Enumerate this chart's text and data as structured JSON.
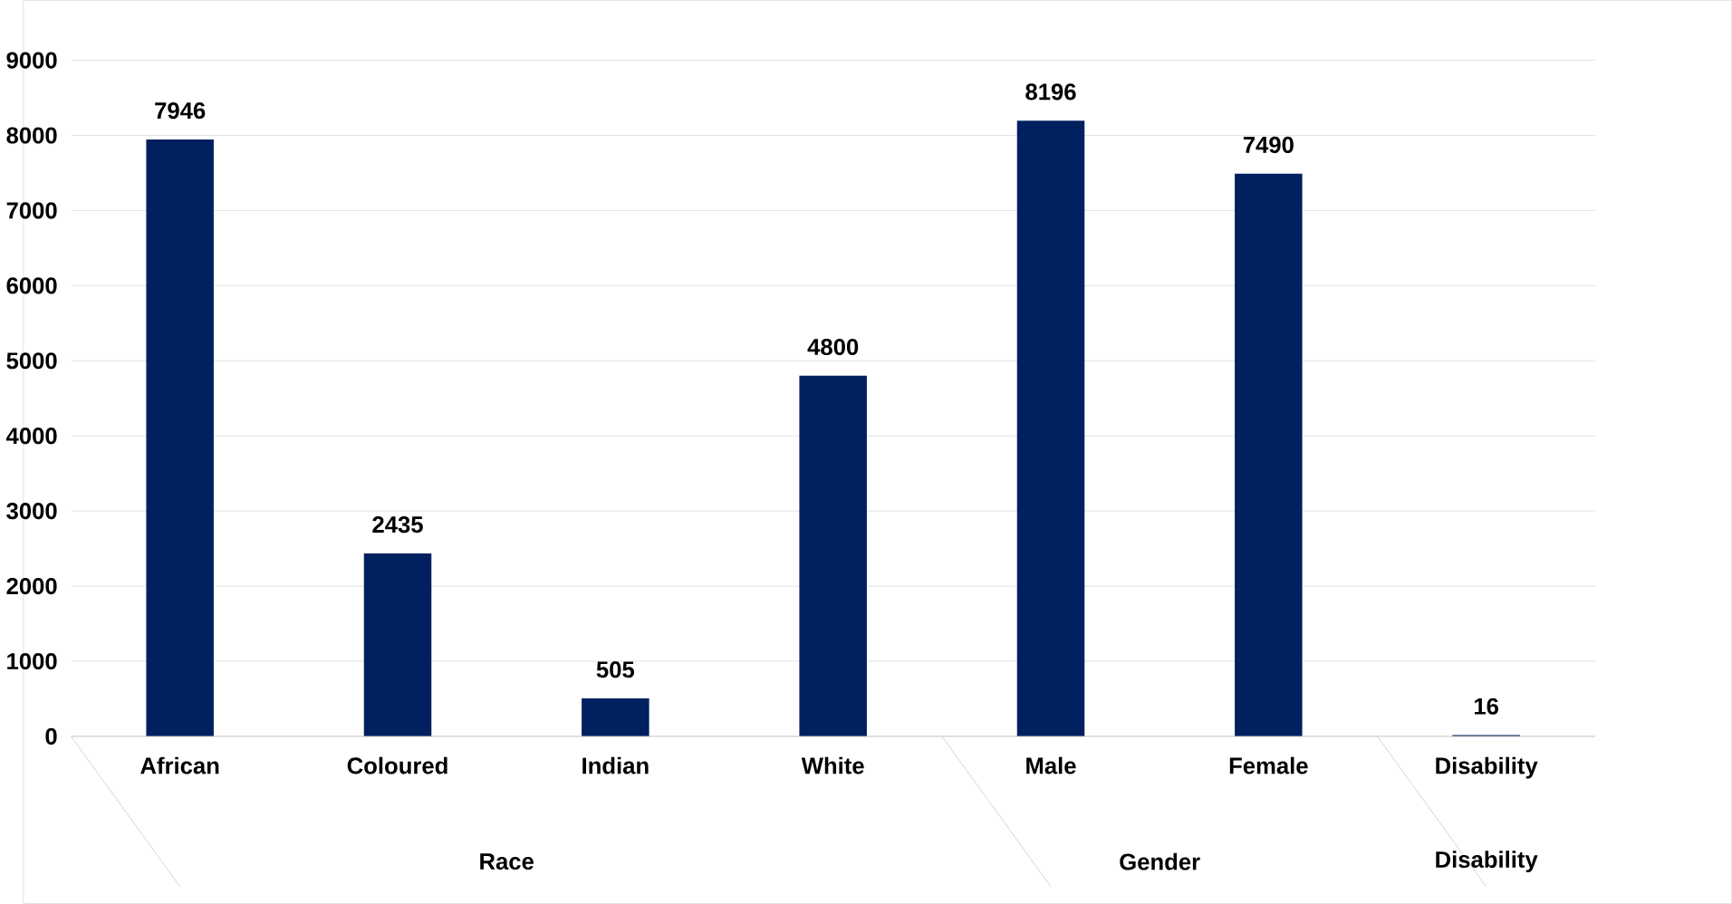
{
  "chart_data": {
    "type": "bar",
    "categories": [
      "African",
      "Coloured",
      "Indian",
      "White",
      "Male",
      "Female",
      "Disability"
    ],
    "values": [
      7946,
      2435,
      505,
      4800,
      8196,
      7490,
      16
    ],
    "color": "#002060",
    "ylim": [
      0,
      9000
    ],
    "yticks": [
      0,
      1000,
      2000,
      3000,
      4000,
      5000,
      6000,
      7000,
      8000,
      9000
    ],
    "grid": "y",
    "data_labels": true,
    "annotations": [
      "Race",
      "Gender",
      "Disability"
    ]
  }
}
